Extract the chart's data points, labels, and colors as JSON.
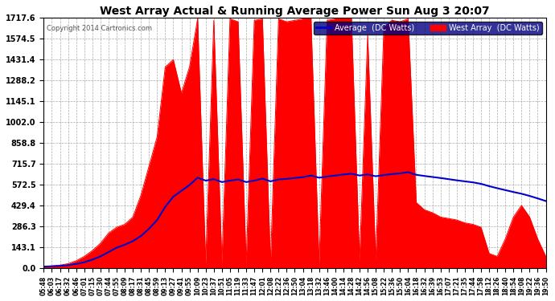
{
  "title": "West Array Actual & Running Average Power Sun Aug 3 20:07",
  "copyright": "Copyright 2014 Cartronics.com",
  "legend_labels": [
    "Average  (DC Watts)",
    "West Array  (DC Watts)"
  ],
  "legend_colors": [
    "#0000cc",
    "#ff0000"
  ],
  "bg_color": "#ffffff",
  "plot_bg_color": "#ffffff",
  "grid_color": "#aaaaaa",
  "ymax": 1717.6,
  "ymin": 0.0,
  "yticks": [
    0.0,
    143.1,
    286.3,
    429.4,
    572.5,
    715.7,
    858.8,
    1002.0,
    1145.1,
    1288.2,
    1431.4,
    1574.5,
    1717.6
  ],
  "west_array_color": "#ff0000",
  "average_color": "#0000cc",
  "time_labels": [
    "05:48",
    "06:03",
    "06:17",
    "06:32",
    "06:46",
    "07:01",
    "07:15",
    "07:30",
    "07:44",
    "07:55",
    "08:09",
    "08:17",
    "08:31",
    "08:45",
    "08:59",
    "09:13",
    "09:27",
    "09:41",
    "09:55",
    "10:09",
    "10:23",
    "10:37",
    "10:51",
    "11:05",
    "11:19",
    "11:33",
    "11:47",
    "12:01",
    "12:08",
    "12:22",
    "12:36",
    "12:50",
    "13:04",
    "13:18",
    "13:32",
    "13:46",
    "14:00",
    "14:14",
    "14:28",
    "14:42",
    "14:56",
    "15:08",
    "15:22",
    "15:36",
    "15:50",
    "16:04",
    "16:18",
    "16:32",
    "16:39",
    "16:53",
    "17:07",
    "17:21",
    "17:35",
    "17:44",
    "17:58",
    "18:12",
    "18:26",
    "18:40",
    "18:54",
    "19:08",
    "19:22",
    "19:36",
    "19:50"
  ],
  "west_array_values": [
    10,
    15,
    20,
    30,
    50,
    80,
    120,
    170,
    240,
    280,
    300,
    350,
    500,
    700,
    900,
    1380,
    1430,
    1200,
    1380,
    1710,
    30,
    1700,
    30,
    1710,
    1690,
    30,
    1700,
    1710,
    30,
    1710,
    1690,
    1700,
    1710,
    1710,
    30,
    1700,
    1710,
    1710,
    1710,
    50,
    1600,
    50,
    1650,
    1700,
    1690,
    1710,
    450,
    400,
    380,
    350,
    340,
    330,
    310,
    300,
    280,
    100,
    80,
    200,
    350,
    430,
    350,
    200,
    80
  ],
  "average_values": [
    10,
    12,
    15,
    20,
    28,
    40,
    58,
    80,
    110,
    140,
    160,
    185,
    220,
    270,
    330,
    420,
    490,
    530,
    570,
    620,
    600,
    610,
    590,
    600,
    608,
    590,
    600,
    614,
    595,
    608,
    612,
    618,
    624,
    635,
    620,
    628,
    635,
    642,
    648,
    635,
    642,
    630,
    638,
    645,
    650,
    658,
    640,
    632,
    625,
    618,
    610,
    602,
    595,
    588,
    578,
    562,
    548,
    535,
    522,
    510,
    495,
    478,
    460
  ]
}
